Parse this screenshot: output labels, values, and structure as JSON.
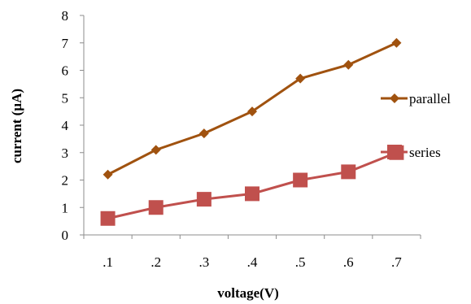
{
  "chart_data": {
    "type": "line",
    "categories": [
      ".1",
      ".2",
      ".3",
      ".4",
      ".5",
      ".6",
      ".7"
    ],
    "series": [
      {
        "name": "parallel",
        "values": [
          2.2,
          3.1,
          3.7,
          4.5,
          5.7,
          6.2,
          7.0
        ],
        "color": "#a0520f",
        "marker": "diamond"
      },
      {
        "name": "series",
        "values": [
          0.6,
          1.0,
          1.3,
          1.5,
          2.0,
          2.3,
          3.0
        ],
        "color": "#c0504d",
        "marker": "square"
      }
    ],
    "xlabel": "voltage(V)",
    "ylabel": "current (µA)",
    "ylim": [
      0,
      8
    ],
    "yticks": [
      "0",
      "1",
      "2",
      "3",
      "4",
      "5",
      "6",
      "7",
      "8"
    ],
    "grid": false,
    "legend_position": "right"
  }
}
